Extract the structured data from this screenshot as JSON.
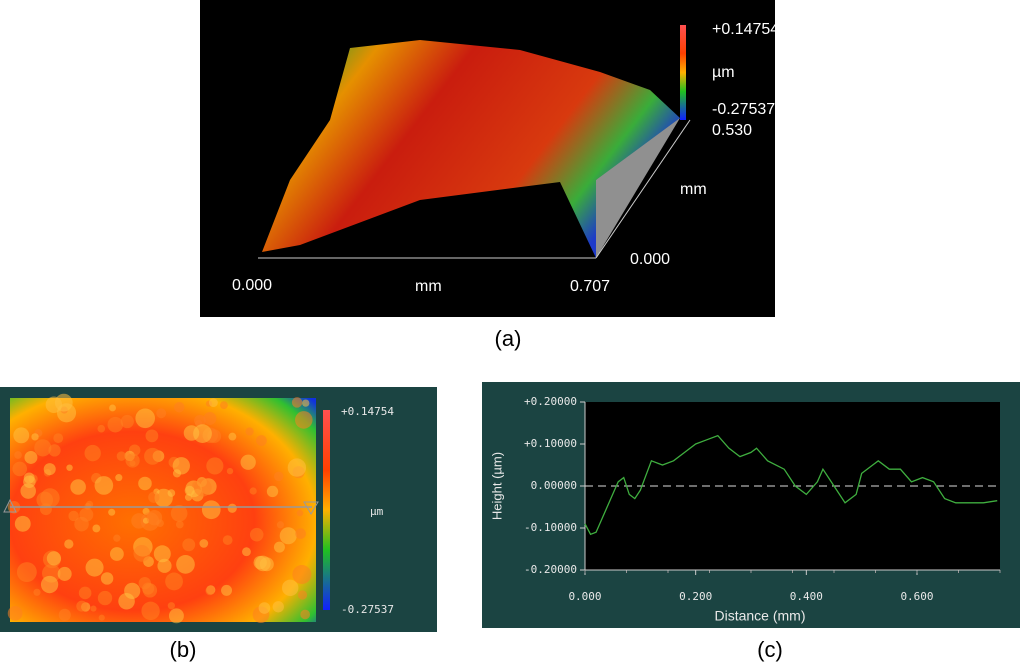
{
  "panels": [
    {
      "caption": "(a)",
      "colorbar_max": "+0.14754",
      "colorbar_unit": "µm",
      "colorbar_min": "-0.27537",
      "y_max_label": "0.530",
      "y_unit": "mm",
      "y_min_label": "0.000",
      "x_min_label": "0.000",
      "x_unit": "mm",
      "x_max_label": "0.707"
    },
    {
      "caption": "(b)",
      "colorbar_max": "+0.14754",
      "colorbar_unit": "µm",
      "colorbar_min": "-0.27537"
    }
  ],
  "chart_data": {
    "type": "line",
    "caption": "(c)",
    "xlabel": "Distance (mm)",
    "ylabel": "Height (µm)",
    "x": [
      0,
      0.01,
      0.02,
      0.03,
      0.05,
      0.06,
      0.07,
      0.08,
      0.09,
      0.1,
      0.12,
      0.14,
      0.16,
      0.18,
      0.2,
      0.22,
      0.24,
      0.26,
      0.28,
      0.3,
      0.31,
      0.33,
      0.36,
      0.38,
      0.4,
      0.42,
      0.43,
      0.45,
      0.47,
      0.49,
      0.5,
      0.52,
      0.53,
      0.55,
      0.57,
      0.59,
      0.61,
      0.63,
      0.65,
      0.67,
      0.69,
      0.72,
      0.745
    ],
    "series": [
      {
        "color": "#3fae3f",
        "values": [
          -0.09,
          -0.115,
          -0.11,
          -0.08,
          -0.02,
          0.01,
          0.02,
          -0.02,
          -0.03,
          -0.01,
          0.06,
          0.05,
          0.06,
          0.08,
          0.1,
          0.11,
          0.12,
          0.09,
          0.07,
          0.08,
          0.09,
          0.06,
          0.04,
          0.0,
          -0.02,
          0.01,
          0.04,
          0.0,
          -0.04,
          -0.02,
          0.03,
          0.05,
          0.06,
          0.04,
          0.04,
          0.01,
          0.02,
          0.01,
          -0.03,
          -0.04,
          -0.04,
          -0.04,
          -0.035
        ]
      }
    ],
    "xlim": [
      0,
      0.75
    ],
    "ylim": [
      -0.2,
      0.2
    ],
    "xticks": [
      {
        "value": 0,
        "label": "0.000"
      },
      {
        "value": 0.2,
        "label": "0.200"
      },
      {
        "value": 0.4,
        "label": "0.400"
      },
      {
        "value": 0.6,
        "label": "0.600"
      }
    ],
    "yticks": [
      {
        "value": 0.2,
        "label": "+0.20000"
      },
      {
        "value": 0.1,
        "label": "+0.10000"
      },
      {
        "value": 0,
        "label": "0.00000"
      },
      {
        "value": -0.1,
        "label": "-0.10000"
      },
      {
        "value": -0.2,
        "label": "-0.20000"
      }
    ],
    "zero_line": true
  }
}
